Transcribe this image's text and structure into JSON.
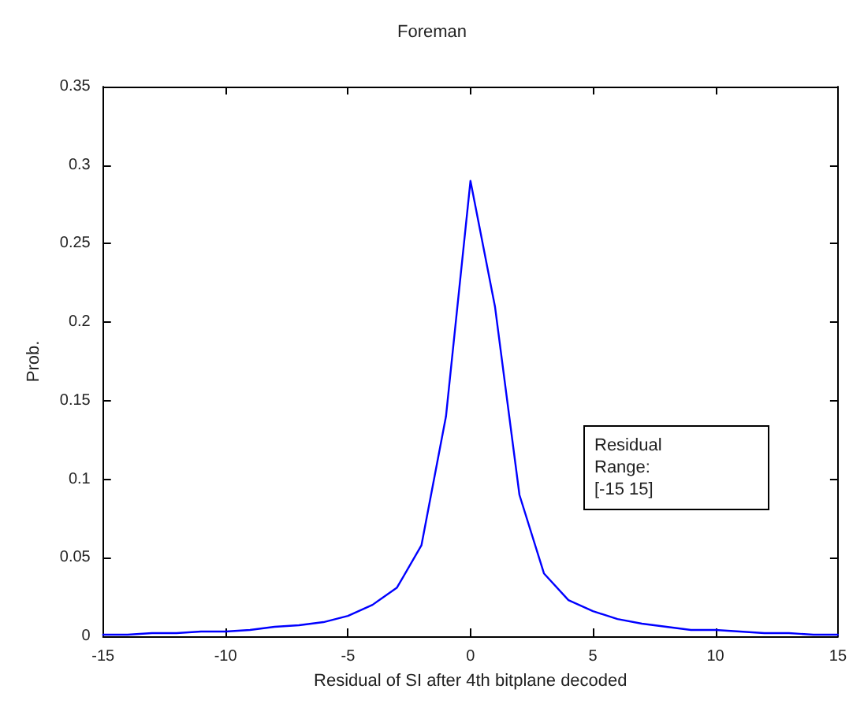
{
  "chart_data": {
    "type": "line",
    "title": "Foreman",
    "xlabel": "Residual of SI after 4th bitplane decoded",
    "ylabel": "Prob.",
    "x": [
      -15,
      -14,
      -13,
      -12,
      -11,
      -10,
      -9,
      -8,
      -7,
      -6,
      -5,
      -4,
      -3,
      -2,
      -1,
      0,
      1,
      2,
      3,
      4,
      5,
      6,
      7,
      8,
      9,
      10,
      11,
      12,
      13,
      14,
      15
    ],
    "series": [
      {
        "color": "#0000ff",
        "values": [
          0.001,
          0.001,
          0.002,
          0.002,
          0.003,
          0.003,
          0.004,
          0.006,
          0.007,
          0.009,
          0.013,
          0.02,
          0.031,
          0.058,
          0.14,
          0.29,
          0.21,
          0.09,
          0.04,
          0.023,
          0.016,
          0.011,
          0.008,
          0.006,
          0.004,
          0.004,
          0.003,
          0.002,
          0.002,
          0.001,
          0.001
        ]
      }
    ],
    "xlim": [
      -15,
      15
    ],
    "xticks": [
      -15,
      -10,
      -5,
      0,
      5,
      10,
      15
    ],
    "ylim": [
      0,
      0.35
    ],
    "yticks": [
      0,
      0.05,
      0.1,
      0.15,
      0.2,
      0.25,
      0.3,
      0.35
    ],
    "grid": false,
    "marker": "none",
    "line_style": "solid",
    "annotations": [
      "Residual\nRange:\n[-15 15]"
    ]
  }
}
